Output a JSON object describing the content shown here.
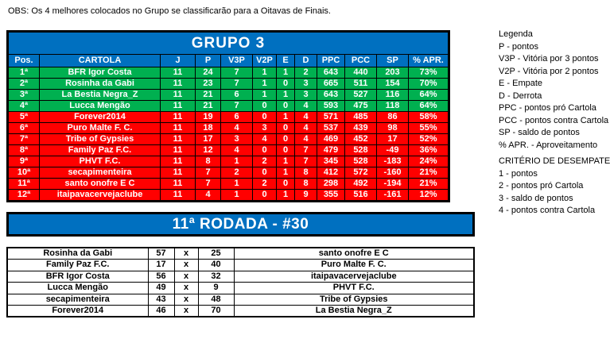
{
  "obs": "OBS: Os 4 melhores colocados no Grupo se classificarão para a Oitavas de Finais.",
  "colors": {
    "banner_blue": "#0070C0",
    "qualified_green": "#00B050",
    "eliminated_red": "#FF0000"
  },
  "group_table": {
    "title": "GRUPO 3",
    "columns": [
      "Pos.",
      "CARTOLA",
      "J",
      "P",
      "V3P",
      "V2P",
      "E",
      "D",
      "PPC",
      "PCC",
      "SP",
      "% APR."
    ],
    "rows": [
      {
        "pos": "1ª",
        "cartola": "BFR Igor Costa",
        "j": 11,
        "p": 24,
        "v3p": 7,
        "v2p": 1,
        "e": 1,
        "d": 2,
        "ppc": 643,
        "pcc": 440,
        "sp": 203,
        "apr": "73%",
        "zone": "qualified"
      },
      {
        "pos": "2ª",
        "cartola": "Rosinha da Gabi",
        "j": 11,
        "p": 23,
        "v3p": 7,
        "v2p": 1,
        "e": 0,
        "d": 3,
        "ppc": 665,
        "pcc": 511,
        "sp": 154,
        "apr": "70%",
        "zone": "qualified"
      },
      {
        "pos": "3ª",
        "cartola": "La Bestia Negra_Z",
        "j": 11,
        "p": 21,
        "v3p": 6,
        "v2p": 1,
        "e": 1,
        "d": 3,
        "ppc": 643,
        "pcc": 527,
        "sp": 116,
        "apr": "64%",
        "zone": "qualified"
      },
      {
        "pos": "4ª",
        "cartola": "Lucca Mengão",
        "j": 11,
        "p": 21,
        "v3p": 7,
        "v2p": 0,
        "e": 0,
        "d": 4,
        "ppc": 593,
        "pcc": 475,
        "sp": 118,
        "apr": "64%",
        "zone": "qualified"
      },
      {
        "pos": "5ª",
        "cartola": "Forever2014",
        "j": 11,
        "p": 19,
        "v3p": 6,
        "v2p": 0,
        "e": 1,
        "d": 4,
        "ppc": 571,
        "pcc": 485,
        "sp": 86,
        "apr": "58%",
        "zone": "eliminated"
      },
      {
        "pos": "6ª",
        "cartola": "Puro Malte F. C.",
        "j": 11,
        "p": 18,
        "v3p": 4,
        "v2p": 3,
        "e": 0,
        "d": 4,
        "ppc": 537,
        "pcc": 439,
        "sp": 98,
        "apr": "55%",
        "zone": "eliminated"
      },
      {
        "pos": "7ª",
        "cartola": "Tribe of Gypsies",
        "j": 11,
        "p": 17,
        "v3p": 3,
        "v2p": 4,
        "e": 0,
        "d": 4,
        "ppc": 469,
        "pcc": 452,
        "sp": 17,
        "apr": "52%",
        "zone": "eliminated"
      },
      {
        "pos": "8ª",
        "cartola": "Family Paz F.C.",
        "j": 11,
        "p": 12,
        "v3p": 4,
        "v2p": 0,
        "e": 0,
        "d": 7,
        "ppc": 479,
        "pcc": 528,
        "sp": -49,
        "apr": "36%",
        "zone": "eliminated"
      },
      {
        "pos": "9ª",
        "cartola": "PHVT F.C.",
        "j": 11,
        "p": 8,
        "v3p": 1,
        "v2p": 2,
        "e": 1,
        "d": 7,
        "ppc": 345,
        "pcc": 528,
        "sp": -183,
        "apr": "24%",
        "zone": "eliminated"
      },
      {
        "pos": "10ª",
        "cartola": "secapimenteira",
        "j": 11,
        "p": 7,
        "v3p": 2,
        "v2p": 0,
        "e": 1,
        "d": 8,
        "ppc": 412,
        "pcc": 572,
        "sp": -160,
        "apr": "21%",
        "zone": "eliminated"
      },
      {
        "pos": "11ª",
        "cartola": "santo onofre E C",
        "j": 11,
        "p": 7,
        "v3p": 1,
        "v2p": 2,
        "e": 0,
        "d": 8,
        "ppc": 298,
        "pcc": 492,
        "sp": -194,
        "apr": "21%",
        "zone": "eliminated"
      },
      {
        "pos": "12ª",
        "cartola": "itaipavacervejaclube",
        "j": 11,
        "p": 4,
        "v3p": 1,
        "v2p": 0,
        "e": 1,
        "d": 9,
        "ppc": 355,
        "pcc": 516,
        "sp": -161,
        "apr": "12%",
        "zone": "eliminated"
      }
    ]
  },
  "legend": {
    "title": "Legenda",
    "items": [
      "P - pontos",
      "V3P - Vitória por 3 pontos",
      "V2P - Vitória por 2 pontos",
      "E - Empate",
      "D - Derrota",
      "PPC - pontos pró Cartola",
      "PCC - pontos contra Cartola",
      "SP - saldo de pontos",
      "% APR. - Aproveitamento"
    ]
  },
  "tiebreaker": {
    "title": "CRITÉRIO DE DESEMPATE",
    "items": [
      "1 - pontos",
      "2 - pontos pró Cartola",
      "3 - saldo de pontos",
      "4 - pontos contra Cartola"
    ]
  },
  "round": {
    "title": "11ª RODADA - #30",
    "matches": [
      {
        "home": "Rosinha da Gabi",
        "home_score": 57,
        "sep": "x",
        "away_score": 25,
        "away": "santo onofre E C"
      },
      {
        "home": "Family Paz F.C.",
        "home_score": 17,
        "sep": "x",
        "away_score": 40,
        "away": "Puro Malte F. C."
      },
      {
        "home": "BFR Igor Costa",
        "home_score": 56,
        "sep": "x",
        "away_score": 32,
        "away": "itaipavacervejaclube"
      },
      {
        "home": "Lucca Mengão",
        "home_score": 49,
        "sep": "x",
        "away_score": 9,
        "away": "PHVT F.C."
      },
      {
        "home": "secapimenteira",
        "home_score": 43,
        "sep": "x",
        "away_score": 48,
        "away": "Tribe of Gypsies"
      },
      {
        "home": "Forever2014",
        "home_score": 46,
        "sep": "x",
        "away_score": 70,
        "away": "La Bestia Negra_Z"
      }
    ]
  }
}
